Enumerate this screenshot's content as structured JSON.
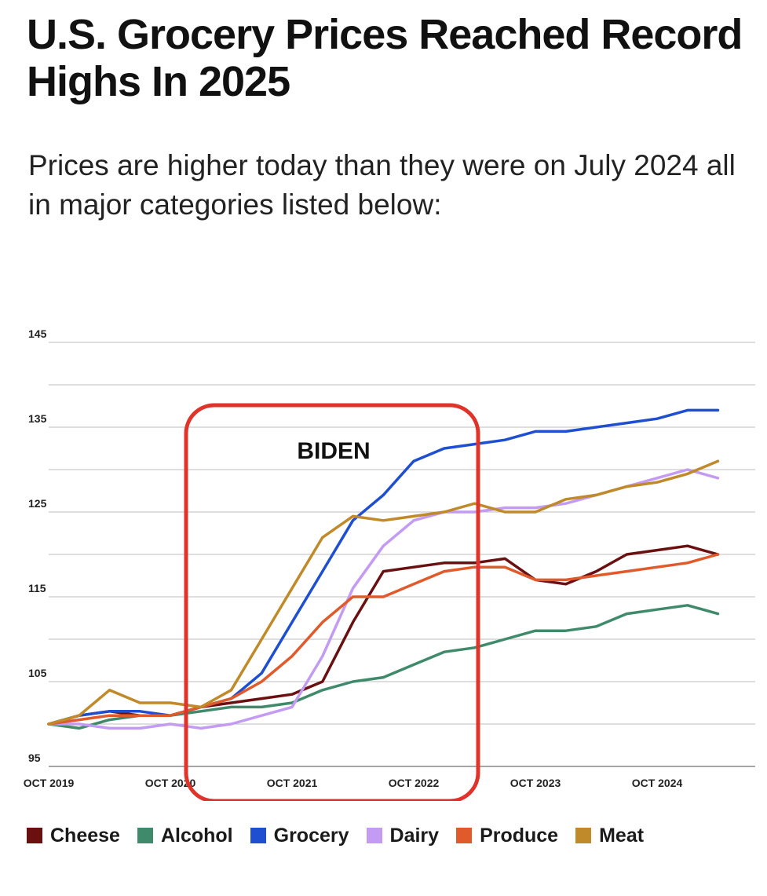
{
  "header": {
    "title": "U.S. Grocery Prices Reached Record Highs In 2025",
    "subtitle": "Prices are higher today than they were on July 2024 all in major categories listed below:"
  },
  "annotation": {
    "label": "BIDEN",
    "color": "#e0342b"
  },
  "chart_data": {
    "type": "line",
    "title": "",
    "xlabel": "",
    "ylabel": "",
    "ylim": [
      95,
      145
    ],
    "yticks": [
      95,
      105,
      115,
      125,
      135,
      145
    ],
    "grid": true,
    "legend_position": "bottom",
    "xticks": [
      "OCT 2019",
      "OCT 2020",
      "OCT 2021",
      "OCT 2022",
      "OCT 2023",
      "OCT 2024"
    ],
    "x": [
      "2019-10",
      "2020-01",
      "2020-04",
      "2020-07",
      "2020-10",
      "2021-01",
      "2021-04",
      "2021-07",
      "2021-10",
      "2022-01",
      "2022-04",
      "2022-07",
      "2022-10",
      "2023-01",
      "2023-04",
      "2023-07",
      "2023-10",
      "2024-01",
      "2024-04",
      "2024-07",
      "2024-10",
      "2025-01",
      "2025-04"
    ],
    "series": [
      {
        "name": "Cheese",
        "color": "#6b1010",
        "values": [
          100,
          101,
          101.5,
          101,
          101,
          102,
          102.5,
          103,
          103.5,
          105,
          112,
          118,
          118.5,
          119,
          119,
          119.5,
          117,
          116.5,
          118,
          120,
          120.5,
          121,
          120
        ]
      },
      {
        "name": "Alcohol",
        "color": "#3f8a6b",
        "values": [
          100,
          99.5,
          100.5,
          101,
          101,
          101.5,
          102,
          102,
          102.5,
          104,
          105,
          105.5,
          107,
          108.5,
          109,
          110,
          111,
          111,
          111.5,
          113,
          113.5,
          114,
          113
        ]
      },
      {
        "name": "Grocery",
        "color": "#1f4fd1",
        "values": [
          100,
          101,
          101.5,
          101.5,
          101,
          102,
          103,
          106,
          112,
          118,
          124,
          127,
          131,
          132.5,
          133,
          133.5,
          134.5,
          134.5,
          135,
          135.5,
          136,
          137,
          137
        ]
      },
      {
        "name": "Dairy",
        "color": "#c39bf2",
        "values": [
          100,
          100,
          99.5,
          99.5,
          100,
          99.5,
          100,
          101,
          102,
          108,
          116,
          121,
          124,
          125,
          125,
          125.5,
          125.5,
          126,
          127,
          128,
          129,
          130,
          129
        ]
      },
      {
        "name": "Produce",
        "color": "#e05a2b",
        "values": [
          100,
          100.5,
          101,
          101,
          101,
          102,
          103,
          105,
          108,
          112,
          115,
          115,
          116.5,
          118,
          118.5,
          118.5,
          117,
          117,
          117.5,
          118,
          118.5,
          119,
          120
        ]
      },
      {
        "name": "Meat",
        "color": "#c08a2a",
        "values": [
          100,
          101,
          104,
          102.5,
          102.5,
          102,
          104,
          110,
          116,
          122,
          124.5,
          124,
          124.5,
          125,
          126,
          125,
          125,
          126.5,
          127,
          128,
          128.5,
          129.5,
          131
        ]
      }
    ]
  }
}
